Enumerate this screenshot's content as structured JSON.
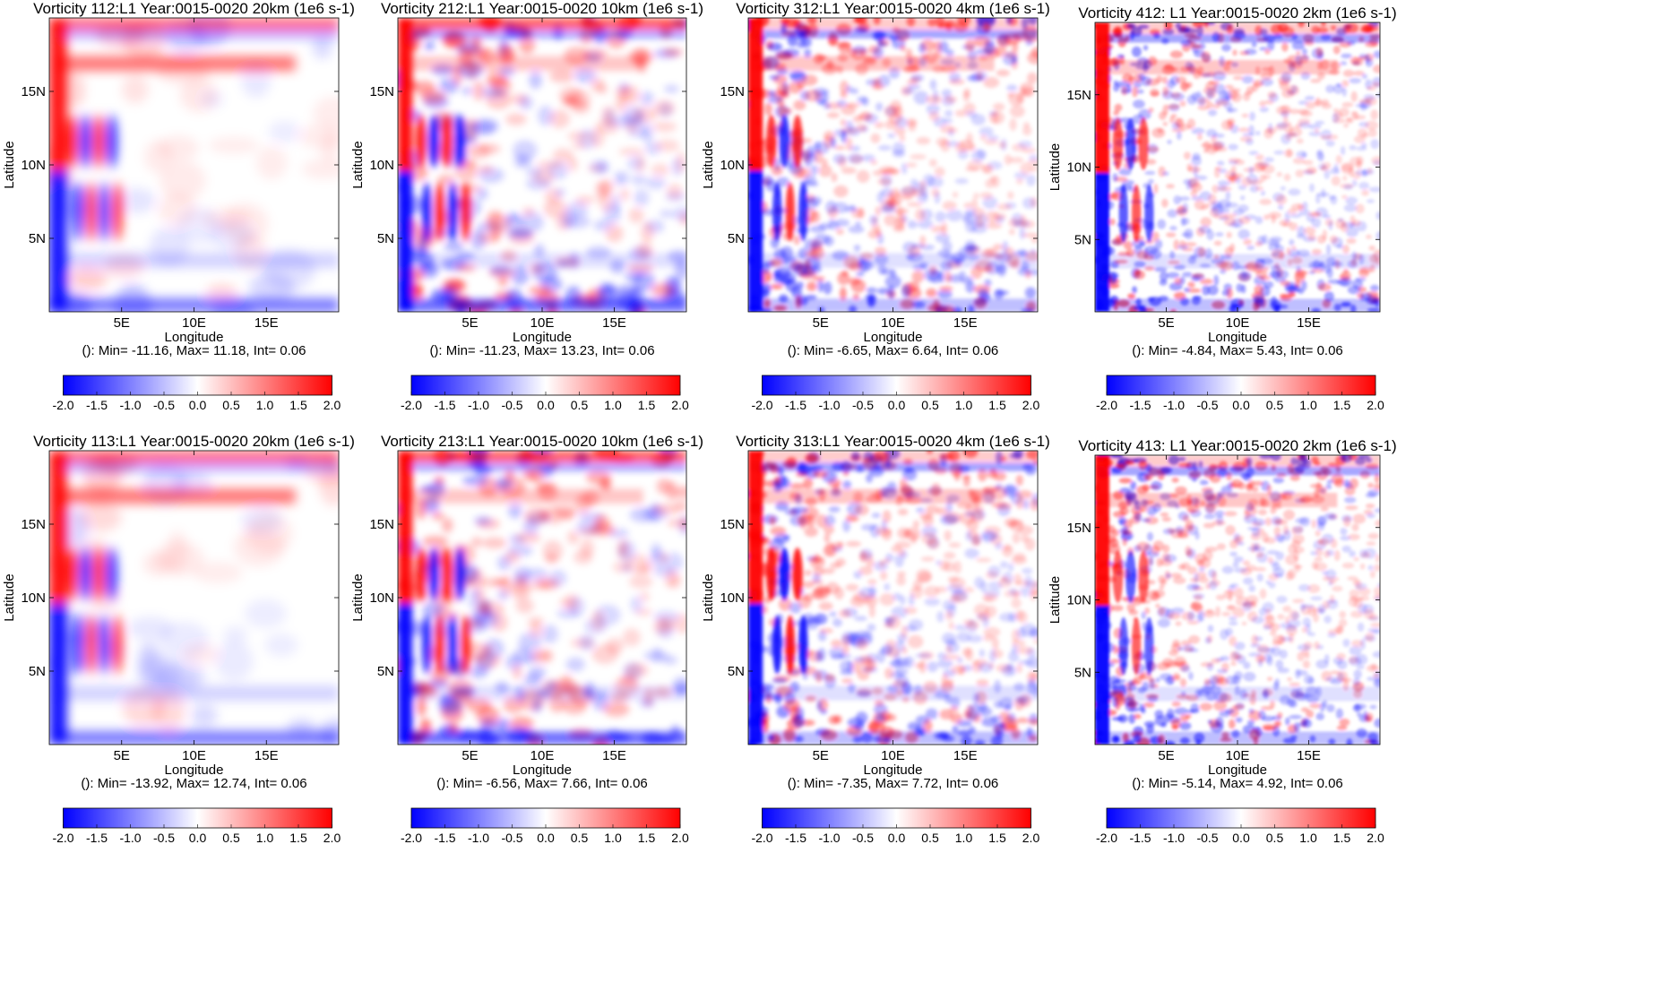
{
  "chart_data": {
    "type": "heatmap",
    "x_axis": {
      "label": "Longitude",
      "ticks": [
        {
          "value": 5,
          "label": "5E"
        },
        {
          "value": 10,
          "label": "10E"
        },
        {
          "value": 15,
          "label": "15E"
        }
      ],
      "range": [
        0,
        20
      ]
    },
    "y_axis": {
      "label": "Latitude",
      "ticks": [
        {
          "value": 5,
          "label": "5N"
        },
        {
          "value": 10,
          "label": "10N"
        },
        {
          "value": 15,
          "label": "15N"
        }
      ],
      "range": [
        0,
        20
      ]
    },
    "colorbar": {
      "range": [
        -2.0,
        2.0
      ],
      "ticks": [
        "-2.0",
        "-1.5",
        "-1.0",
        "-0.5",
        "0.0",
        "0.5",
        "1.0",
        "1.5",
        "2.0"
      ],
      "low_color": "#0000ff",
      "mid_color": "#ffffff",
      "high_color": "#ff0000"
    },
    "panels": [
      {
        "title": "Vorticity 112:L1 Year:0015-0020 20km (1e6 s-1)",
        "stats": "(): Min= -11.16, Max= 11.18, Int= 0.06",
        "resolution_km": 20,
        "min": -11.16,
        "max": 11.18,
        "interval": 0.06
      },
      {
        "title": "Vorticity 212:L1 Year:0015-0020 10km (1e6 s-1)",
        "stats": "(): Min= -11.23, Max= 13.23, Int= 0.06",
        "resolution_km": 10,
        "min": -11.23,
        "max": 13.23,
        "interval": 0.06
      },
      {
        "title": "Vorticity 312:L1 Year:0015-0020 4km (1e6 s-1)",
        "stats": "(): Min= -6.65, Max= 6.64, Int= 0.06",
        "resolution_km": 4,
        "min": -6.65,
        "max": 6.64,
        "interval": 0.06
      },
      {
        "title": "Vorticity 412: L1 Year:0015-0020 2km (1e6 s-1)",
        "stats": "(): Min= -4.84, Max= 5.43, Int= 0.06",
        "resolution_km": 2,
        "min": -4.84,
        "max": 5.43,
        "interval": 0.06
      },
      {
        "title": "Vorticity 113:L1 Year:0015-0020 20km (1e6 s-1)",
        "stats": "(): Min= -13.92, Max= 12.74, Int= 0.06",
        "resolution_km": 20,
        "min": -13.92,
        "max": 12.74,
        "interval": 0.06
      },
      {
        "title": "Vorticity 213:L1 Year:0015-0020 10km (1e6 s-1)",
        "stats": "(): Min= -6.56, Max= 7.66, Int= 0.06",
        "resolution_km": 10,
        "min": -6.56,
        "max": 7.66,
        "interval": 0.06
      },
      {
        "title": "Vorticity 313:L1 Year:0015-0020 4km (1e6 s-1)",
        "stats": "(): Min= -7.35, Max= 7.72, Int= 0.06",
        "resolution_km": 4,
        "min": -7.35,
        "max": 7.72,
        "interval": 0.06
      },
      {
        "title": "Vorticity 413: L1 Year:0015-0020 2km (1e6 s-1)",
        "stats": "(): Min= -5.14, Max= 4.92, Int= 0.06",
        "resolution_km": 2,
        "min": -5.14,
        "max": 4.92,
        "interval": 0.06
      }
    ]
  }
}
